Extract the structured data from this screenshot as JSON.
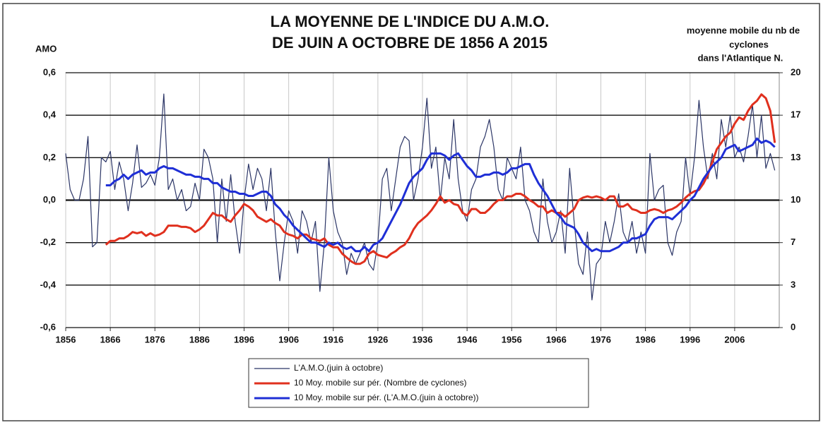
{
  "chart_data": {
    "type": "line",
    "title": [
      "LA MOYENNE DE L'INDICE DU A.M.O.",
      "DE JUIN A OCTOBRE DE 1856 A 2015"
    ],
    "ylabel": "AMO",
    "y2label": [
      "moyenne mobile du nb de",
      "cyclones",
      "dans l'Atlantique N."
    ],
    "x": [
      1856,
      1857,
      1858,
      1859,
      1860,
      1861,
      1862,
      1863,
      1864,
      1865,
      1866,
      1867,
      1868,
      1869,
      1870,
      1871,
      1872,
      1873,
      1874,
      1875,
      1876,
      1877,
      1878,
      1879,
      1880,
      1881,
      1882,
      1883,
      1884,
      1885,
      1886,
      1887,
      1888,
      1889,
      1890,
      1891,
      1892,
      1893,
      1894,
      1895,
      1896,
      1897,
      1898,
      1899,
      1900,
      1901,
      1902,
      1903,
      1904,
      1905,
      1906,
      1907,
      1908,
      1909,
      1910,
      1911,
      1912,
      1913,
      1914,
      1915,
      1916,
      1917,
      1918,
      1919,
      1920,
      1921,
      1922,
      1923,
      1924,
      1925,
      1926,
      1927,
      1928,
      1929,
      1930,
      1931,
      1932,
      1933,
      1934,
      1935,
      1936,
      1937,
      1938,
      1939,
      1940,
      1941,
      1942,
      1943,
      1944,
      1945,
      1946,
      1947,
      1948,
      1949,
      1950,
      1951,
      1952,
      1953,
      1954,
      1955,
      1956,
      1957,
      1958,
      1959,
      1960,
      1961,
      1962,
      1963,
      1964,
      1965,
      1966,
      1967,
      1968,
      1969,
      1970,
      1971,
      1972,
      1973,
      1974,
      1975,
      1976,
      1977,
      1978,
      1979,
      1980,
      1981,
      1982,
      1983,
      1984,
      1985,
      1986,
      1987,
      1988,
      1989,
      1990,
      1991,
      1992,
      1993,
      1994,
      1995,
      1996,
      1997,
      1998,
      1999,
      2000,
      2001,
      2002,
      2003,
      2004,
      2005,
      2006,
      2007,
      2008,
      2009,
      2010,
      2011,
      2012,
      2013,
      2014,
      2015
    ],
    "series": [
      {
        "name": "L'A.M.O.(juin à octobre)",
        "color": "#2b3566",
        "width": 1.2,
        "values": [
          0.22,
          0.05,
          0,
          0,
          0.1,
          0.3,
          -0.22,
          -0.2,
          0.2,
          0.18,
          0.23,
          0.05,
          0.18,
          0.1,
          -0.05,
          0.08,
          0.26,
          0.06,
          0.08,
          0.12,
          0.07,
          0.2,
          0.5,
          0.05,
          0.1,
          0,
          0.05,
          -0.05,
          -0.03,
          0.08,
          0,
          0.24,
          0.2,
          0.1,
          -0.2,
          0.1,
          -0.1,
          0.12,
          -0.1,
          -0.25,
          0,
          0.17,
          0.05,
          0.15,
          0.1,
          -0.05,
          0.15,
          -0.15,
          -0.38,
          -0.2,
          -0.05,
          -0.1,
          -0.25,
          -0.05,
          -0.1,
          -0.2,
          -0.1,
          -0.43,
          -0.2,
          0.2,
          -0.05,
          -0.15,
          -0.2,
          -0.35,
          -0.25,
          -0.3,
          -0.25,
          -0.2,
          -0.3,
          -0.33,
          -0.2,
          0.1,
          0.15,
          -0.05,
          0.1,
          0.25,
          0.3,
          0.28,
          0,
          0.1,
          0.25,
          0.48,
          0.15,
          0.25,
          0,
          0.2,
          0.1,
          0.38,
          0.1,
          -0.05,
          -0.1,
          0.05,
          0.1,
          0.25,
          0.3,
          0.38,
          0.25,
          0.05,
          0,
          0.2,
          0.15,
          0.1,
          0.25,
          0,
          -0.05,
          -0.15,
          -0.2,
          0.1,
          -0.1,
          -0.2,
          -0.15,
          -0.05,
          -0.25,
          0.15,
          -0.1,
          -0.3,
          -0.35,
          -0.15,
          -0.47,
          -0.3,
          -0.27,
          -0.1,
          -0.2,
          -0.1,
          0.03,
          -0.15,
          -0.2,
          -0.1,
          -0.25,
          -0.15,
          -0.25,
          0.22,
          0,
          0.05,
          0.07,
          -0.2,
          -0.26,
          -0.15,
          -0.1,
          0.2,
          0.02,
          0.2,
          0.47,
          0.25,
          0.1,
          0.22,
          0.1,
          0.38,
          0.25,
          0.4,
          0.2,
          0.25,
          0.18,
          0.3,
          0.45,
          0.2,
          0.4,
          0.15,
          0.22,
          0.14
        ]
      },
      {
        "name": "10 Moy. mobile sur pér. (Nombre de cyclones)",
        "color": "#e0301e",
        "width": 3,
        "axis": "y2",
        "values": [
          null,
          null,
          null,
          null,
          null,
          null,
          null,
          null,
          null,
          6.5,
          6.8,
          6.8,
          7,
          7,
          7.2,
          7.5,
          7.4,
          7.5,
          7.2,
          7.4,
          7.2,
          7.3,
          7.5,
          8,
          8,
          8,
          7.9,
          7.9,
          7.8,
          7.5,
          7.7,
          8,
          8.5,
          9,
          8.8,
          8.8,
          8.5,
          8.3,
          8.8,
          9.2,
          9.7,
          9.5,
          9.2,
          8.7,
          8.5,
          8.3,
          8.5,
          8.2,
          8,
          7.5,
          7.3,
          7.2,
          7,
          7.3,
          7.3,
          7,
          6.9,
          6.8,
          7,
          6.5,
          6.3,
          6.3,
          5.8,
          5.5,
          5.2,
          5,
          5,
          5.2,
          5.8,
          6,
          5.7,
          5.6,
          5.5,
          5.8,
          6,
          6.3,
          6.5,
          7,
          7.7,
          8.2,
          8.5,
          8.8,
          9.2,
          9.7,
          10.3,
          9.8,
          10,
          9.7,
          9.6,
          9,
          8.8,
          9.3,
          9.3,
          9,
          9,
          9.3,
          9.7,
          10,
          10,
          10.3,
          10.3,
          10.5,
          10.5,
          10.3,
          10,
          9.8,
          9.5,
          9.5,
          9,
          9.2,
          9,
          9,
          8.7,
          9,
          9.3,
          10,
          10.2,
          10.3,
          10.2,
          10.3,
          10.2,
          10,
          10.3,
          10.3,
          9.5,
          9.5,
          9.7,
          9.3,
          9.2,
          9,
          9,
          9.2,
          9.3,
          9.2,
          9,
          9.2,
          9.3,
          9.5,
          9.8,
          10.2,
          10.5,
          10.7,
          10.8,
          11.3,
          12,
          13,
          14,
          14.5,
          15,
          15.3,
          16,
          16.5,
          16.3,
          17,
          17.5,
          17.8,
          18.3,
          18,
          17,
          14.5
        ]
      },
      {
        "name": "10 Moy. mobile sur pér. (L'A.M.O.(juin à octobre))",
        "color": "#1f2fd6",
        "width": 3,
        "values": [
          null,
          null,
          null,
          null,
          null,
          null,
          null,
          null,
          null,
          0.07,
          0.07,
          0.09,
          0.1,
          0.12,
          0.1,
          0.12,
          0.13,
          0.14,
          0.12,
          0.13,
          0.13,
          0.15,
          0.16,
          0.15,
          0.15,
          0.14,
          0.13,
          0.12,
          0.12,
          0.11,
          0.11,
          0.1,
          0.1,
          0.08,
          0.08,
          0.06,
          0.05,
          0.04,
          0.04,
          0.03,
          0.03,
          0.02,
          0.02,
          0.03,
          0.04,
          0.04,
          0.02,
          -0.02,
          -0.04,
          -0.07,
          -0.09,
          -0.12,
          -0.14,
          -0.16,
          -0.18,
          -0.2,
          -0.2,
          -0.21,
          -0.22,
          -0.2,
          -0.21,
          -0.2,
          -0.22,
          -0.23,
          -0.22,
          -0.24,
          -0.24,
          -0.22,
          -0.24,
          -0.21,
          -0.2,
          -0.18,
          -0.14,
          -0.1,
          -0.06,
          -0.02,
          0.03,
          0.08,
          0.11,
          0.13,
          0.15,
          0.19,
          0.22,
          0.22,
          0.22,
          0.21,
          0.19,
          0.21,
          0.22,
          0.19,
          0.16,
          0.14,
          0.11,
          0.11,
          0.12,
          0.12,
          0.13,
          0.13,
          0.12,
          0.13,
          0.15,
          0.15,
          0.16,
          0.17,
          0.17,
          0.12,
          0.08,
          0.05,
          0.02,
          -0.02,
          -0.06,
          -0.08,
          -0.11,
          -0.12,
          -0.13,
          -0.16,
          -0.2,
          -0.22,
          -0.24,
          -0.23,
          -0.24,
          -0.24,
          -0.24,
          -0.23,
          -0.22,
          -0.2,
          -0.2,
          -0.18,
          -0.18,
          -0.17,
          -0.16,
          -0.12,
          -0.09,
          -0.08,
          -0.08,
          -0.08,
          -0.09,
          -0.07,
          -0.05,
          -0.03,
          0,
          0.02,
          0.06,
          0.1,
          0.13,
          0.16,
          0.18,
          0.2,
          0.24,
          0.25,
          0.26,
          0.23,
          0.24,
          0.25,
          0.26,
          0.29,
          0.27,
          0.28,
          0.27,
          0.25
        ]
      }
    ],
    "xlim": [
      1856,
      2016
    ],
    "xticks": [
      1856,
      1866,
      1876,
      1886,
      1896,
      1906,
      1916,
      1926,
      1936,
      1946,
      1956,
      1966,
      1976,
      1986,
      1996,
      2006
    ],
    "ylim": [
      -0.6,
      0.6
    ],
    "yticks": [
      {
        "value": 0.6,
        "label": "0,6"
      },
      {
        "value": 0.4,
        "label": "0,4"
      },
      {
        "value": 0.2,
        "label": "0,2"
      },
      {
        "value": 0,
        "label": "0,0"
      },
      {
        "value": -0.2,
        "label": "-0,2"
      },
      {
        "value": -0.4,
        "label": "-0,4"
      },
      {
        "value": -0.6,
        "label": "-0,6"
      }
    ],
    "y2lim": [
      0,
      20
    ],
    "y2ticks": [
      0,
      {
        "value": 3.333,
        "label": "3"
      },
      {
        "value": 6.667,
        "label": "7"
      },
      10,
      {
        "value": 13.333,
        "label": "13"
      },
      {
        "value": 16.667,
        "label": "17"
      },
      20
    ],
    "grid": true
  }
}
